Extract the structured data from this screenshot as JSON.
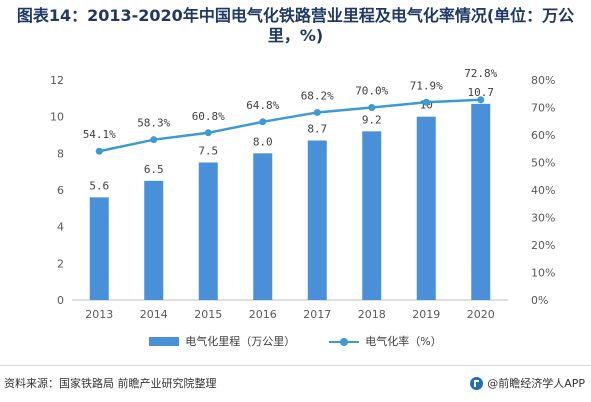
{
  "title_line1": "图表14：2013-2020年中国电气化铁路营业里程及电气化率情况(单位：万公",
  "title_line2": "里，%)",
  "legend": {
    "bar_label": "电气化里程（万公里）",
    "line_label": "电气化率（%）"
  },
  "footer": {
    "source": "资料来源：国家铁路局 前瞻产业研究院整理",
    "brand": "@前瞻经济学人APP"
  },
  "colors": {
    "bar": "#4a90d9",
    "line": "#3c9ad5",
    "axis": "#bfbfbf"
  },
  "chart_data": {
    "type": "bar",
    "categories": [
      "2013",
      "2014",
      "2015",
      "2016",
      "2017",
      "2018",
      "2019",
      "2020"
    ],
    "series": [
      {
        "name": "电气化里程（万公里）",
        "type": "bar",
        "axis": "left",
        "values": [
          5.6,
          6.5,
          7.5,
          8.0,
          8.7,
          9.2,
          10,
          10.7
        ],
        "labels": [
          "5.6",
          "6.5",
          "7.5",
          "8.0",
          "8.7",
          "9.2",
          "10",
          "10.7"
        ]
      },
      {
        "name": "电气化率（%）",
        "type": "line",
        "axis": "right",
        "values": [
          54.1,
          58.3,
          60.8,
          64.8,
          68.2,
          70.0,
          71.9,
          72.8
        ],
        "labels": [
          "54.1%",
          "58.3%",
          "60.8%",
          "64.8%",
          "68.2%",
          "70.0%",
          "71.9%",
          "72.8%"
        ]
      }
    ],
    "y_left": {
      "min": 0,
      "max": 12,
      "ticks": [
        "0",
        "2",
        "4",
        "6",
        "8",
        "10",
        "12"
      ]
    },
    "y_right": {
      "min": 0,
      "max": 80,
      "ticks": [
        "0%",
        "10%",
        "20%",
        "30%",
        "40%",
        "50%",
        "60%",
        "70%",
        "80%"
      ]
    },
    "grid": false,
    "legend_position": "bottom"
  }
}
